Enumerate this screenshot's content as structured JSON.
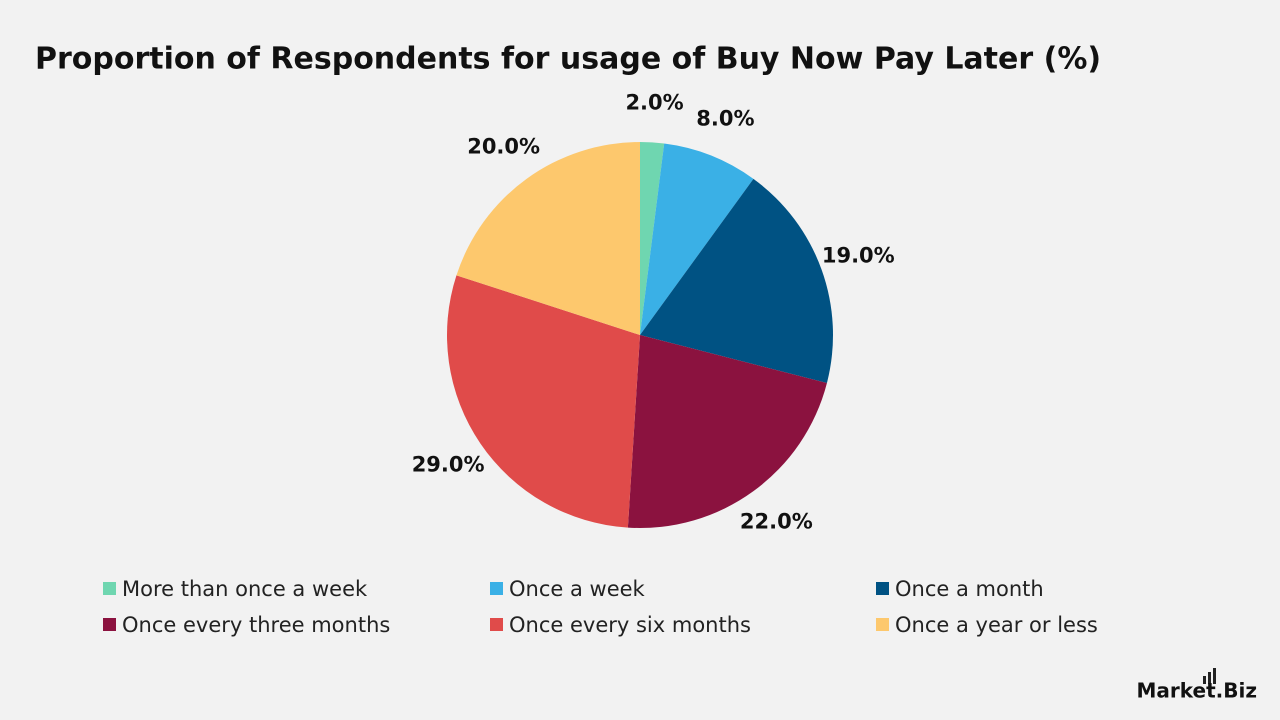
{
  "chart_data": {
    "type": "pie",
    "title": "Proportion of Respondents for usage of Buy Now Pay Later (%)",
    "categories": [
      "More than once a week",
      "Once a week",
      "Once a month",
      "Once every three months",
      "Once every six months",
      "Once a year or less"
    ],
    "values": [
      2,
      8,
      19,
      22,
      29,
      20
    ],
    "value_labels": [
      "2.0%",
      "8.0%",
      "19.0%",
      "22.0%",
      "29.0%",
      "20.0%"
    ],
    "colors": [
      "#6fd6b0",
      "#3ab0e6",
      "#005283",
      "#8b123f",
      "#e04b4a",
      "#fdc86d"
    ],
    "legend": "bottom"
  },
  "watermark": "Market.Biz"
}
